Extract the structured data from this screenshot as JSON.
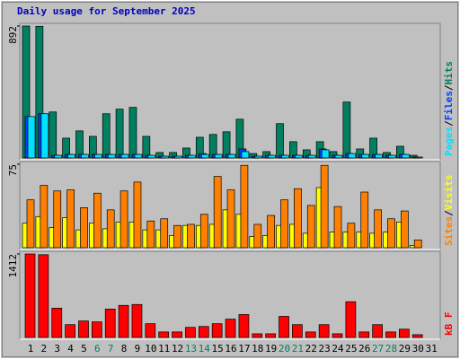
{
  "title": "Daily usage for September 2025",
  "legend_separator": "/",
  "chart_data": [
    {
      "type": "bar",
      "ylim": [
        0,
        892
      ],
      "yticks": [
        892
      ],
      "series": [
        {
          "name": "Hits",
          "color": "#008060",
          "values": [
            892,
            890,
            311,
            134,
            183,
            146,
            299,
            330,
            342,
            146,
            37,
            37,
            67,
            140,
            159,
            177,
            262,
            30,
            43,
            232,
            110,
            55,
            110,
            43,
            378,
            61,
            134,
            37,
            79,
            18,
            0
          ]
        },
        {
          "name": "Files",
          "color": "#0040ff",
          "values": [
            280,
            299,
            18,
            24,
            24,
            24,
            24,
            24,
            24,
            18,
            12,
            12,
            18,
            30,
            24,
            24,
            61,
            12,
            18,
            18,
            18,
            18,
            61,
            18,
            30,
            24,
            24,
            18,
            24,
            6,
            0
          ]
        },
        {
          "name": "Pages",
          "color": "#00e0ff",
          "values": [
            280,
            299,
            18,
            24,
            24,
            24,
            24,
            24,
            24,
            18,
            12,
            12,
            18,
            24,
            24,
            24,
            43,
            12,
            18,
            18,
            18,
            18,
            55,
            18,
            30,
            24,
            24,
            18,
            24,
            6,
            0
          ]
        }
      ]
    },
    {
      "type": "bar",
      "ylim": [
        0,
        75
      ],
      "yticks": [
        75
      ],
      "series": [
        {
          "name": "Visits",
          "color": "#ffff00",
          "values": [
            22,
            28,
            18,
            27,
            16,
            22,
            17,
            23,
            23,
            16,
            16,
            11,
            20,
            20,
            21,
            34,
            30,
            10,
            11,
            20,
            21,
            13,
            54,
            14,
            14,
            14,
            13,
            14,
            23,
            2,
            0
          ]
        },
        {
          "name": "Sites",
          "color": "#ff8000",
          "values": [
            43,
            56,
            51,
            52,
            36,
            49,
            34,
            51,
            59,
            24,
            26,
            20,
            21,
            30,
            64,
            52,
            74,
            21,
            29,
            43,
            53,
            38,
            74,
            37,
            22,
            50,
            34,
            26,
            33,
            7,
            0
          ]
        }
      ]
    },
    {
      "type": "bar",
      "ylim": [
        0,
        1412
      ],
      "yticks": [
        1412
      ],
      "series": [
        {
          "name": "kB F",
          "color": "#ff0000",
          "values": [
            1412,
            1400,
            496,
            217,
            279,
            264,
            481,
            543,
            558,
            233,
            93,
            93,
            171,
            186,
            233,
            310,
            388,
            62,
            62,
            357,
            217,
            93,
            217,
            62,
            605,
            93,
            217,
            93,
            140,
            47,
            0
          ]
        }
      ],
      "categories": [
        "1",
        "2",
        "3",
        "4",
        "5",
        "6",
        "7",
        "8",
        "9",
        "10",
        "11",
        "12",
        "13",
        "14",
        "15",
        "16",
        "17",
        "18",
        "19",
        "20",
        "21",
        "22",
        "23",
        "24",
        "25",
        "26",
        "27",
        "28",
        "29",
        "30",
        "31"
      ],
      "category_colors": [
        "#000000",
        "#000000",
        "#000000",
        "#000000",
        "#000000",
        "#008060",
        "#008060",
        "#000000",
        "#000000",
        "#000000",
        "#000000",
        "#000000",
        "#008060",
        "#008060",
        "#000000",
        "#000000",
        "#000000",
        "#000000",
        "#000000",
        "#008060",
        "#008060",
        "#000000",
        "#000000",
        "#000000",
        "#000000",
        "#000000",
        "#008060",
        "#008060",
        "#000000",
        "#000000",
        "#000000"
      ]
    }
  ]
}
